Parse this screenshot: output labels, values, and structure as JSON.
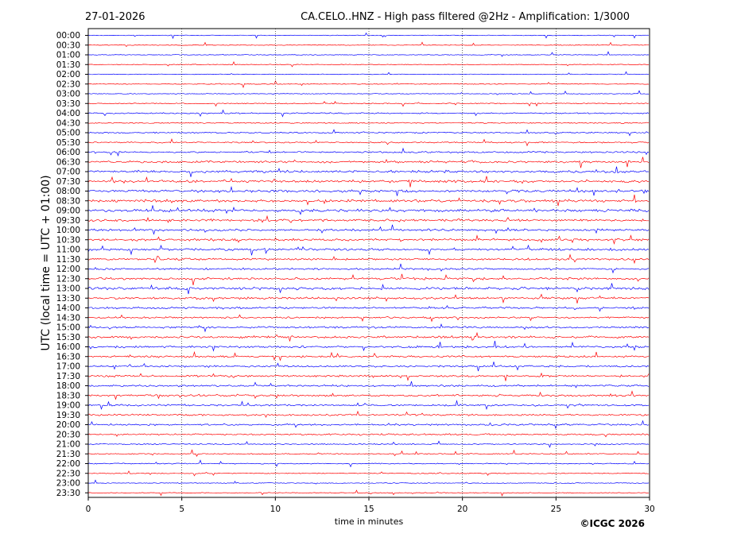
{
  "chart_data": {
    "type": "line",
    "date": "27-01-2026",
    "title": "CA.CELO..HNZ - High pass filtered @2Hz - Amplification: 1/3000",
    "xlabel": "time in minutes",
    "ylabel": "UTC (local time = UTC + 01:00)",
    "copyright": "©ICGC 2026",
    "xlim": [
      0,
      30
    ],
    "x_ticks": [
      "0",
      "5",
      "10",
      "15",
      "20",
      "25",
      "30"
    ],
    "rows": [
      "00:00",
      "00:30",
      "01:00",
      "01:30",
      "02:00",
      "02:30",
      "03:00",
      "03:30",
      "04:00",
      "04:30",
      "05:00",
      "05:30",
      "06:00",
      "06:30",
      "07:00",
      "07:30",
      "08:00",
      "08:30",
      "09:00",
      "09:30",
      "10:00",
      "10:30",
      "11:00",
      "11:30",
      "12:00",
      "12:30",
      "13:00",
      "13:30",
      "14:00",
      "14:30",
      "15:00",
      "15:30",
      "16:00",
      "16:30",
      "17:00",
      "17:30",
      "18:00",
      "18:30",
      "19:00",
      "19:30",
      "20:00",
      "20:30",
      "21:00",
      "21:30",
      "22:00",
      "22:30",
      "23:00",
      "23:30"
    ],
    "activity": [
      0.02,
      0.02,
      0.02,
      0.03,
      0.02,
      0.05,
      0.03,
      0.15,
      0.25,
      0.2,
      0.25,
      0.3,
      0.4,
      0.6,
      0.7,
      0.7,
      0.75,
      0.75,
      0.8,
      0.7,
      0.6,
      0.65,
      0.6,
      0.55,
      0.5,
      0.6,
      0.75,
      0.6,
      0.5,
      0.45,
      0.5,
      0.6,
      0.55,
      0.5,
      0.45,
      0.5,
      0.45,
      0.55,
      0.45,
      0.4,
      0.45,
      0.35,
      0.2,
      0.15,
      0.15,
      0.1,
      0.05,
      0.02
    ],
    "line_colors": [
      "#0000ff",
      "#ff0000"
    ],
    "grid": "vertical dotted at every 5 minutes"
  }
}
